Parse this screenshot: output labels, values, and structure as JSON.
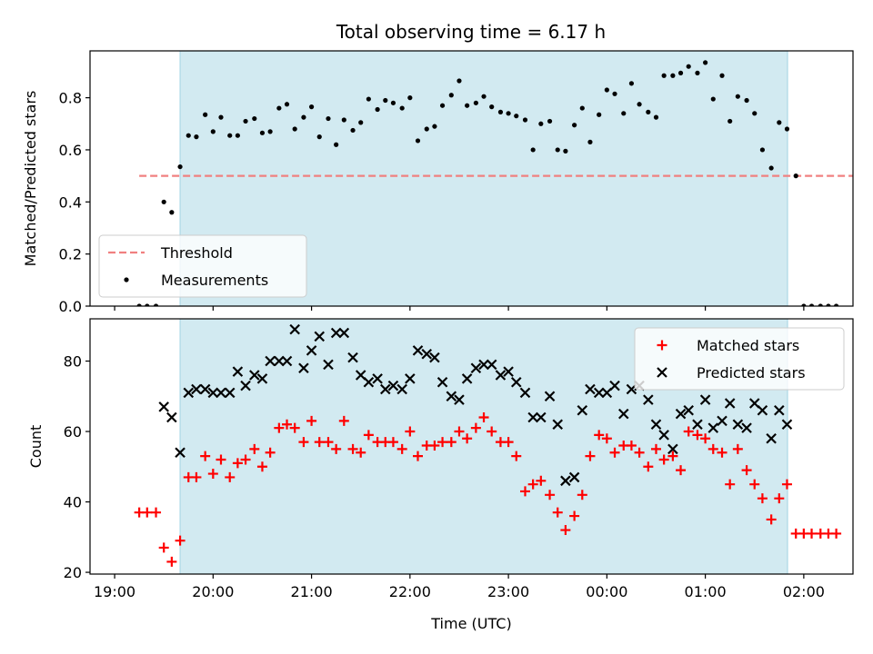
{
  "figure": {
    "title": "Total observing time = 6.17 h"
  },
  "chart_data": [
    {
      "type": "scatter",
      "panel": "top",
      "ylabel": "Matched/Predicted stars",
      "xlabel": "",
      "ylim": [
        0,
        0.98
      ],
      "xlim": [
        -0.25,
        7.5
      ],
      "x_unit": "hours since 19:00 UTC",
      "yticks": [
        0.0,
        0.2,
        0.4,
        0.6,
        0.8
      ],
      "ytick_labels": [
        "0.0",
        "0.2",
        "0.4",
        "0.6",
        "0.8"
      ],
      "shaded_interval": [
        0.665,
        6.835
      ],
      "shade_color": "#add8e6",
      "threshold": {
        "name": "Threshold",
        "value": 0.5,
        "x_range": [
          0.25,
          7.75
        ],
        "color": "#f08080"
      },
      "legend_position": "lower-left",
      "series": [
        {
          "name": "Measurements",
          "color": "#000000",
          "marker": "dot",
          "points": [
            [
              0.25,
              0.0
            ],
            [
              0.33,
              0.0
            ],
            [
              0.42,
              0.0
            ],
            [
              0.5,
              0.4
            ],
            [
              0.58,
              0.36
            ],
            [
              0.665,
              0.535
            ],
            [
              0.75,
              0.655
            ],
            [
              0.83,
              0.65
            ],
            [
              0.92,
              0.735
            ],
            [
              1.0,
              0.67
            ],
            [
              1.08,
              0.725
            ],
            [
              1.17,
              0.655
            ],
            [
              1.25,
              0.655
            ],
            [
              1.33,
              0.71
            ],
            [
              1.42,
              0.72
            ],
            [
              1.5,
              0.665
            ],
            [
              1.58,
              0.67
            ],
            [
              1.67,
              0.76
            ],
            [
              1.75,
              0.775
            ],
            [
              1.83,
              0.68
            ],
            [
              1.92,
              0.725
            ],
            [
              2.0,
              0.765
            ],
            [
              2.08,
              0.65
            ],
            [
              2.17,
              0.72
            ],
            [
              2.25,
              0.62
            ],
            [
              2.33,
              0.715
            ],
            [
              2.42,
              0.675
            ],
            [
              2.5,
              0.705
            ],
            [
              2.58,
              0.795
            ],
            [
              2.67,
              0.755
            ],
            [
              2.75,
              0.79
            ],
            [
              2.83,
              0.78
            ],
            [
              2.92,
              0.76
            ],
            [
              3.0,
              0.8
            ],
            [
              3.08,
              0.635
            ],
            [
              3.17,
              0.68
            ],
            [
              3.25,
              0.69
            ],
            [
              3.33,
              0.77
            ],
            [
              3.42,
              0.81
            ],
            [
              3.5,
              0.865
            ],
            [
              3.58,
              0.77
            ],
            [
              3.67,
              0.78
            ],
            [
              3.75,
              0.805
            ],
            [
              3.83,
              0.765
            ],
            [
              3.92,
              0.745
            ],
            [
              4.0,
              0.74
            ],
            [
              4.08,
              0.73
            ],
            [
              4.17,
              0.715
            ],
            [
              4.25,
              0.6
            ],
            [
              4.33,
              0.7
            ],
            [
              4.42,
              0.71
            ],
            [
              4.5,
              0.6
            ],
            [
              4.58,
              0.595
            ],
            [
              4.67,
              0.695
            ],
            [
              4.75,
              0.76
            ],
            [
              4.83,
              0.63
            ],
            [
              4.92,
              0.735
            ],
            [
              5.0,
              0.83
            ],
            [
              5.08,
              0.815
            ],
            [
              5.17,
              0.74
            ],
            [
              5.25,
              0.855
            ],
            [
              5.33,
              0.775
            ],
            [
              5.42,
              0.745
            ],
            [
              5.5,
              0.725
            ],
            [
              5.58,
              0.885
            ],
            [
              5.67,
              0.885
            ],
            [
              5.75,
              0.895
            ],
            [
              5.83,
              0.92
            ],
            [
              5.92,
              0.895
            ],
            [
              6.0,
              0.935
            ],
            [
              6.08,
              0.795
            ],
            [
              6.17,
              0.885
            ],
            [
              6.25,
              0.71
            ],
            [
              6.33,
              0.805
            ],
            [
              6.42,
              0.79
            ],
            [
              6.5,
              0.74
            ],
            [
              6.58,
              0.6
            ],
            [
              6.67,
              0.53
            ],
            [
              6.75,
              0.705
            ],
            [
              6.83,
              0.68
            ],
            [
              6.92,
              0.5
            ],
            [
              7.0,
              0.0
            ],
            [
              7.08,
              0.0
            ],
            [
              7.17,
              0.0
            ],
            [
              7.25,
              0.0
            ],
            [
              7.33,
              0.0
            ]
          ]
        }
      ]
    },
    {
      "type": "scatter",
      "panel": "bottom",
      "xlabel": "Time (UTC)",
      "ylabel": "Count",
      "ylim": [
        19.5,
        92
      ],
      "xlim": [
        -0.25,
        7.5
      ],
      "x_unit": "hours since 19:00 UTC",
      "xticks": [
        0,
        1,
        2,
        3,
        4,
        5,
        6,
        7
      ],
      "xtick_labels": [
        "19:00",
        "20:00",
        "21:00",
        "22:00",
        "23:00",
        "00:00",
        "01:00",
        "02:00"
      ],
      "yticks": [
        20,
        40,
        60,
        80
      ],
      "ytick_labels": [
        "20",
        "40",
        "60",
        "80"
      ],
      "shaded_interval": [
        0.665,
        6.835
      ],
      "shade_color": "#add8e6",
      "legend_position": "top-right",
      "series": [
        {
          "name": "Matched stars",
          "color": "#ff0000",
          "marker": "plus",
          "points": [
            [
              0.25,
              37
            ],
            [
              0.33,
              37
            ],
            [
              0.42,
              37
            ],
            [
              0.5,
              27
            ],
            [
              0.58,
              23
            ],
            [
              0.665,
              29
            ],
            [
              0.75,
              47
            ],
            [
              0.83,
              47
            ],
            [
              0.92,
              53
            ],
            [
              1.0,
              48
            ],
            [
              1.08,
              52
            ],
            [
              1.17,
              47
            ],
            [
              1.25,
              51
            ],
            [
              1.33,
              52
            ],
            [
              1.42,
              55
            ],
            [
              1.5,
              50
            ],
            [
              1.58,
              54
            ],
            [
              1.67,
              61
            ],
            [
              1.75,
              62
            ],
            [
              1.83,
              61
            ],
            [
              1.92,
              57
            ],
            [
              2.0,
              63
            ],
            [
              2.08,
              57
            ],
            [
              2.17,
              57
            ],
            [
              2.25,
              55
            ],
            [
              2.33,
              63
            ],
            [
              2.42,
              55
            ],
            [
              2.5,
              54
            ],
            [
              2.58,
              59
            ],
            [
              2.67,
              57
            ],
            [
              2.75,
              57
            ],
            [
              2.83,
              57
            ],
            [
              2.92,
              55
            ],
            [
              3.0,
              60
            ],
            [
              3.08,
              53
            ],
            [
              3.17,
              56
            ],
            [
              3.25,
              56
            ],
            [
              3.33,
              57
            ],
            [
              3.42,
              57
            ],
            [
              3.5,
              60
            ],
            [
              3.58,
              58
            ],
            [
              3.67,
              61
            ],
            [
              3.75,
              64
            ],
            [
              3.83,
              60
            ],
            [
              3.92,
              57
            ],
            [
              4.0,
              57
            ],
            [
              4.08,
              53
            ],
            [
              4.17,
              43
            ],
            [
              4.25,
              45
            ],
            [
              4.33,
              46
            ],
            [
              4.42,
              42
            ],
            [
              4.5,
              37
            ],
            [
              4.58,
              32
            ],
            [
              4.67,
              36
            ],
            [
              4.75,
              42
            ],
            [
              4.83,
              53
            ],
            [
              4.92,
              59
            ],
            [
              5.0,
              58
            ],
            [
              5.08,
              54
            ],
            [
              5.17,
              56
            ],
            [
              5.25,
              56
            ],
            [
              5.33,
              54
            ],
            [
              5.42,
              50
            ],
            [
              5.5,
              55
            ],
            [
              5.58,
              52
            ],
            [
              5.67,
              53
            ],
            [
              5.75,
              49
            ],
            [
              5.83,
              60
            ],
            [
              5.92,
              59
            ],
            [
              6.0,
              58
            ],
            [
              6.08,
              55
            ],
            [
              6.17,
              54
            ],
            [
              6.25,
              45
            ],
            [
              6.33,
              55
            ],
            [
              6.42,
              49
            ],
            [
              6.5,
              45
            ],
            [
              6.58,
              41
            ],
            [
              6.67,
              35
            ],
            [
              6.75,
              41
            ],
            [
              6.83,
              45
            ],
            [
              6.92,
              31
            ],
            [
              7.0,
              31
            ],
            [
              7.08,
              31
            ],
            [
              7.17,
              31
            ],
            [
              7.25,
              31
            ],
            [
              7.33,
              31
            ]
          ]
        },
        {
          "name": "Predicted stars",
          "color": "#000000",
          "marker": "x",
          "points": [
            [
              0.5,
              67
            ],
            [
              0.58,
              64
            ],
            [
              0.665,
              54
            ],
            [
              0.75,
              71
            ],
            [
              0.83,
              72
            ],
            [
              0.92,
              72
            ],
            [
              1.0,
              71
            ],
            [
              1.08,
              71
            ],
            [
              1.17,
              71
            ],
            [
              1.25,
              77
            ],
            [
              1.33,
              73
            ],
            [
              1.42,
              76
            ],
            [
              1.5,
              75
            ],
            [
              1.58,
              80
            ],
            [
              1.67,
              80
            ],
            [
              1.75,
              80
            ],
            [
              1.83,
              89
            ],
            [
              1.92,
              78
            ],
            [
              2.0,
              83
            ],
            [
              2.08,
              87
            ],
            [
              2.17,
              79
            ],
            [
              2.25,
              88
            ],
            [
              2.33,
              88
            ],
            [
              2.42,
              81
            ],
            [
              2.5,
              76
            ],
            [
              2.58,
              74
            ],
            [
              2.67,
              75
            ],
            [
              2.75,
              72
            ],
            [
              2.83,
              73
            ],
            [
              2.92,
              72
            ],
            [
              3.0,
              75
            ],
            [
              3.08,
              83
            ],
            [
              3.17,
              82
            ],
            [
              3.25,
              81
            ],
            [
              3.33,
              74
            ],
            [
              3.42,
              70
            ],
            [
              3.5,
              69
            ],
            [
              3.58,
              75
            ],
            [
              3.67,
              78
            ],
            [
              3.75,
              79
            ],
            [
              3.83,
              79
            ],
            [
              3.92,
              76
            ],
            [
              4.0,
              77
            ],
            [
              4.08,
              74
            ],
            [
              4.17,
              71
            ],
            [
              4.25,
              64
            ],
            [
              4.33,
              64
            ],
            [
              4.42,
              70
            ],
            [
              4.5,
              62
            ],
            [
              4.58,
              46
            ],
            [
              4.67,
              47
            ],
            [
              4.75,
              66
            ],
            [
              4.83,
              72
            ],
            [
              4.92,
              71
            ],
            [
              5.0,
              71
            ],
            [
              5.08,
              73
            ],
            [
              5.17,
              65
            ],
            [
              5.25,
              72
            ],
            [
              5.33,
              73
            ],
            [
              5.42,
              69
            ],
            [
              5.5,
              62
            ],
            [
              5.58,
              59
            ],
            [
              5.67,
              55
            ],
            [
              5.75,
              65
            ],
            [
              5.83,
              66
            ],
            [
              5.92,
              62
            ],
            [
              6.0,
              69
            ],
            [
              6.08,
              61
            ],
            [
              6.17,
              63
            ],
            [
              6.25,
              68
            ],
            [
              6.33,
              62
            ],
            [
              6.42,
              61
            ],
            [
              6.5,
              68
            ],
            [
              6.58,
              66
            ],
            [
              6.67,
              58
            ],
            [
              6.75,
              66
            ],
            [
              6.83,
              62
            ]
          ]
        }
      ]
    }
  ]
}
